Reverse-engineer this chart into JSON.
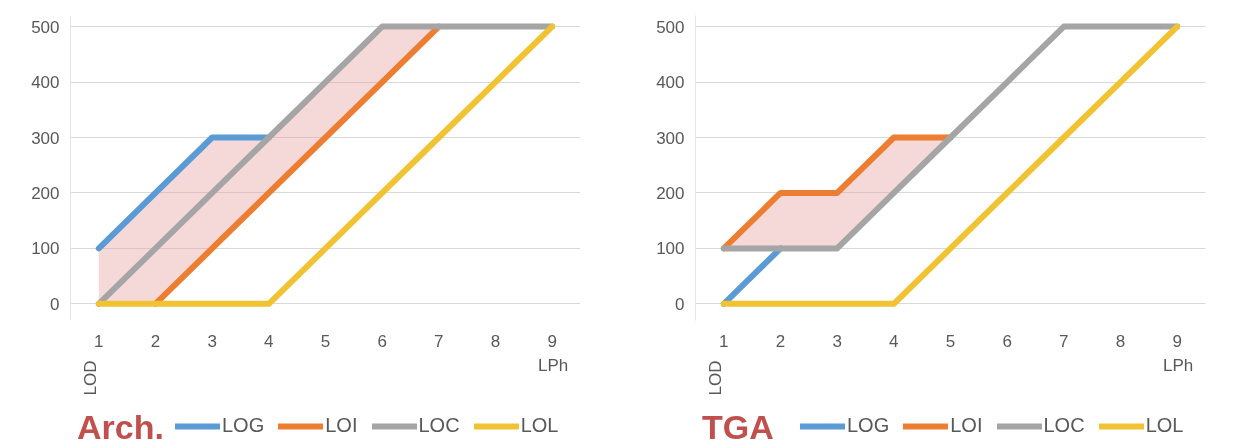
{
  "chart_data": [
    {
      "type": "line",
      "title": "Arch.",
      "ylabel": "LOD",
      "xlabel": "LPh",
      "categories": [
        "1",
        "2",
        "3",
        "4",
        "5",
        "6",
        "7",
        "8",
        "9"
      ],
      "ylim": [
        -30,
        520
      ],
      "yticks": [
        0,
        100,
        200,
        300,
        400,
        500
      ],
      "grid": "y",
      "legend": "bottom",
      "line_style": "solid",
      "marker": "none",
      "series": [
        {
          "name": "LOG",
          "color": "#5b9bd5",
          "values": [
            100,
            200,
            300,
            300,
            null,
            null,
            null,
            null,
            null
          ]
        },
        {
          "name": "LOI",
          "color": "#ed7d31",
          "values": [
            null,
            0,
            100,
            200,
            300,
            400,
            500,
            null,
            null
          ]
        },
        {
          "name": "LOC",
          "color": "#a5a5a5",
          "values": [
            0,
            100,
            200,
            300,
            400,
            500,
            500,
            500,
            500
          ],
          "lower": [
            0,
            0,
            100,
            200,
            300,
            400,
            500,
            null,
            null
          ],
          "upper": [
            100,
            200,
            300,
            300,
            400,
            500,
            500,
            null,
            null
          ]
        },
        {
          "name": "LOL",
          "color": "#f1c232",
          "values": [
            0,
            0,
            0,
            0,
            100,
            200,
            300,
            400,
            500
          ]
        }
      ]
    },
    {
      "type": "line",
      "title": "TGA",
      "ylabel": "LOD",
      "xlabel": "LPh",
      "categories": [
        "1",
        "2",
        "3",
        "4",
        "5",
        "6",
        "7",
        "8",
        "9"
      ],
      "ylim": [
        -30,
        520
      ],
      "yticks": [
        0,
        100,
        200,
        300,
        400,
        500
      ],
      "grid": "y",
      "legend": "bottom",
      "line_style": "solid",
      "marker": "none",
      "series": [
        {
          "name": "LOG",
          "color": "#5b9bd5",
          "values": [
            0,
            100,
            null,
            null,
            null,
            null,
            null,
            null,
            null
          ]
        },
        {
          "name": "LOI",
          "color": "#ed7d31",
          "values": [
            100,
            200,
            200,
            300,
            300,
            null,
            null,
            null,
            null
          ]
        },
        {
          "name": "LOC",
          "color": "#a5a5a5",
          "values": [
            100,
            100,
            100,
            200,
            300,
            400,
            500,
            500,
            500
          ],
          "lower": [
            100,
            100,
            100,
            200,
            300,
            null,
            null,
            null,
            null
          ],
          "upper": [
            100,
            200,
            200,
            300,
            300,
            null,
            null,
            null,
            null
          ]
        },
        {
          "name": "LOL",
          "color": "#f1c232",
          "values": [
            0,
            0,
            0,
            0,
            100,
            200,
            300,
            400,
            500
          ]
        }
      ]
    }
  ]
}
